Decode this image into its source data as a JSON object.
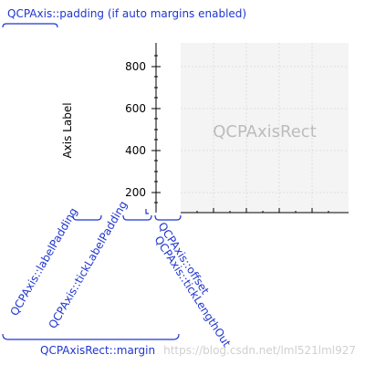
{
  "labels": {
    "padding_label": "QCPAxis::padding (if auto margins enabled)",
    "label_padding": "QCPAxis::labelPadding",
    "tick_label_padding": "QCPAxis::tickLabelPadding",
    "offset": "QCPAxis::offset",
    "tick_length_out": "QCPAxis::tickLengthOut",
    "margin": "QCPAxisRect::margin",
    "axis_label": "Axis Label",
    "axis_rect_label": "QCPAxisRect"
  },
  "ticks": [
    "800",
    "600",
    "400",
    "200"
  ],
  "watermark": "https://blog.csdn.net/lml521lml927",
  "colors": {
    "annotation": "#1f35d0",
    "rect_fill": "#f4f4f4",
    "rect_text": "#bcbcbc"
  }
}
